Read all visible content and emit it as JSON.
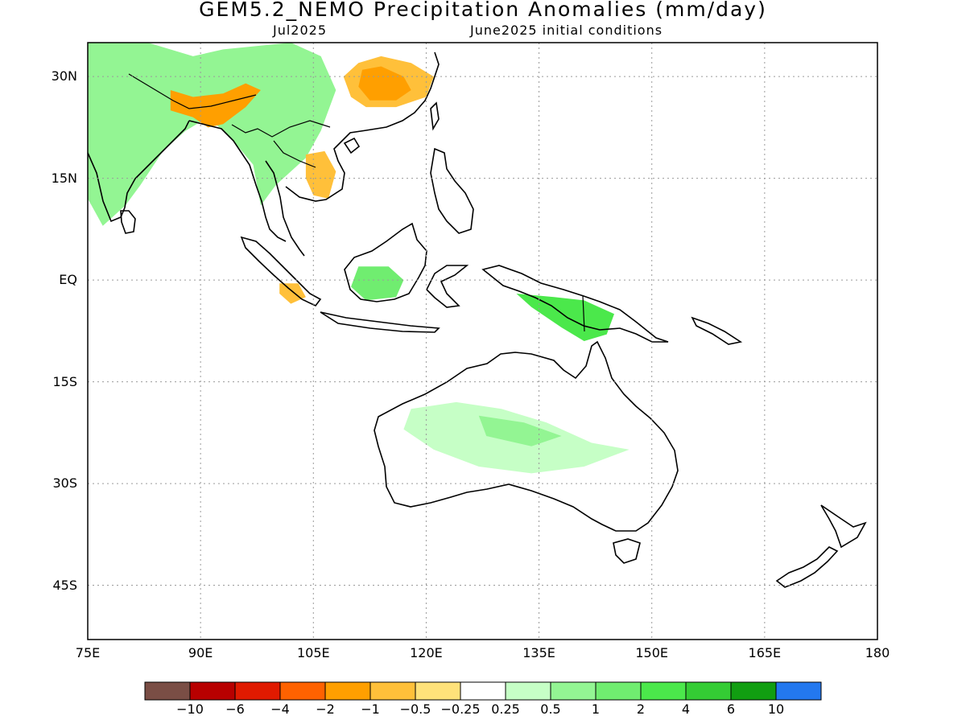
{
  "header": {
    "title": "GEM5.2_NEMO Precipitation Anomalies (mm/day)",
    "valid_month": "Jul2025",
    "initial_conditions": "June2025 initial conditions"
  },
  "map": {
    "lon_range": [
      75,
      180
    ],
    "lat_range": [
      -53,
      35
    ],
    "projection": "cylindrical equidistant",
    "grid": true,
    "lat_ticks": [
      {
        "value": 30,
        "label": "30N"
      },
      {
        "value": 15,
        "label": "15N"
      },
      {
        "value": 0,
        "label": "EQ"
      },
      {
        "value": -15,
        "label": "15S"
      },
      {
        "value": -30,
        "label": "30S"
      },
      {
        "value": -45,
        "label": "45S"
      }
    ],
    "lon_ticks": [
      {
        "value": 75,
        "label": "75E"
      },
      {
        "value": 90,
        "label": "90E"
      },
      {
        "value": 105,
        "label": "105E"
      },
      {
        "value": 120,
        "label": "120E"
      },
      {
        "value": 135,
        "label": "135E"
      },
      {
        "value": 150,
        "label": "150E"
      },
      {
        "value": 165,
        "label": "165E"
      },
      {
        "value": 180,
        "label": "180"
      }
    ]
  },
  "colorbar": {
    "colors": [
      "#7a4e45",
      "#b80000",
      "#e01a00",
      "#ff6200",
      "#ff9f00",
      "#ffc03a",
      "#ffe27a",
      "#ffffff",
      "#c6ffc6",
      "#93f593",
      "#70ed70",
      "#4be84b",
      "#34cc34",
      "#119e11",
      "#2378ef"
    ],
    "labels": [
      "−10",
      "−6",
      "−4",
      "−2",
      "−1",
      "−0.5",
      "−0.25",
      "0.25",
      "0.5",
      "1",
      "2",
      "4",
      "6",
      "10"
    ]
  },
  "features": [
    {
      "name": "china-dry",
      "color": "#ffc03a",
      "points": [
        [
          111,
          32
        ],
        [
          114,
          33
        ],
        [
          118,
          32
        ],
        [
          121,
          30
        ],
        [
          120,
          27
        ],
        [
          116,
          25.5
        ],
        [
          112,
          25.5
        ],
        [
          110,
          27
        ],
        [
          109,
          30
        ]
      ]
    },
    {
      "name": "china-dry-core",
      "color": "#ff9f00",
      "points": [
        [
          111.5,
          31
        ],
        [
          114,
          31.5
        ],
        [
          117,
          30
        ],
        [
          118,
          28
        ],
        [
          116,
          26.5
        ],
        [
          112.5,
          26.5
        ],
        [
          111,
          28.5
        ]
      ]
    },
    {
      "name": "south-asia-wet",
      "color": "#93f593",
      "points": [
        [
          75,
          35
        ],
        [
          83,
          35
        ],
        [
          89,
          33
        ],
        [
          93,
          34
        ],
        [
          102,
          35
        ],
        [
          106,
          33
        ],
        [
          108,
          28
        ],
        [
          106,
          22
        ],
        [
          104,
          18
        ],
        [
          100,
          14
        ],
        [
          98,
          11
        ],
        [
          97,
          17
        ],
        [
          94,
          21
        ],
        [
          91,
          24
        ],
        [
          88,
          22
        ],
        [
          85,
          19
        ],
        [
          82,
          14
        ],
        [
          80,
          11
        ],
        [
          77,
          8
        ],
        [
          75,
          12
        ]
      ]
    },
    {
      "name": "bay-of-bengal-dry",
      "color": "#ff9f00",
      "points": [
        [
          86,
          28
        ],
        [
          89,
          27
        ],
        [
          93,
          27.5
        ],
        [
          96,
          29
        ],
        [
          98,
          28
        ],
        [
          96,
          25.5
        ],
        [
          93,
          23
        ],
        [
          91,
          22.5
        ],
        [
          89,
          24
        ],
        [
          86,
          25
        ]
      ]
    },
    {
      "name": "mekong-dry",
      "color": "#ffc03a",
      "points": [
        [
          104,
          18.5
        ],
        [
          106.5,
          19
        ],
        [
          108,
          16
        ],
        [
          107,
          12
        ],
        [
          105,
          12.5
        ],
        [
          104,
          15
        ]
      ]
    },
    {
      "name": "borneo-wet",
      "color": "#70ed70",
      "points": [
        [
          111,
          2
        ],
        [
          115,
          2
        ],
        [
          117,
          0
        ],
        [
          116,
          -2.5
        ],
        [
          112,
          -3
        ],
        [
          110,
          -1
        ]
      ]
    },
    {
      "name": "sumatra-dry",
      "color": "#ffc03a",
      "points": [
        [
          100.5,
          -0.5
        ],
        [
          103,
          -0.5
        ],
        [
          104,
          -2.5
        ],
        [
          102,
          -3.5
        ],
        [
          100.5,
          -2
        ]
      ]
    },
    {
      "name": "new-guinea-wet",
      "color": "#4be84b",
      "points": [
        [
          132,
          -2
        ],
        [
          137,
          -2.5
        ],
        [
          141,
          -3
        ],
        [
          145,
          -5
        ],
        [
          144,
          -8
        ],
        [
          141,
          -9
        ],
        [
          138,
          -7
        ],
        [
          134,
          -4
        ]
      ]
    },
    {
      "name": "australia-wet",
      "color": "#c6ffc6",
      "points": [
        [
          118,
          -19
        ],
        [
          124,
          -18
        ],
        [
          130,
          -19
        ],
        [
          136,
          -21
        ],
        [
          142,
          -24
        ],
        [
          147,
          -25
        ],
        [
          141,
          -27.5
        ],
        [
          134,
          -28.5
        ],
        [
          127,
          -27.5
        ],
        [
          121,
          -25
        ],
        [
          117,
          -22
        ]
      ]
    },
    {
      "name": "australia-wet-core",
      "color": "#93f593",
      "points": [
        [
          127,
          -20
        ],
        [
          133,
          -21
        ],
        [
          138,
          -23
        ],
        [
          134,
          -24.5
        ],
        [
          128,
          -23
        ]
      ]
    }
  ]
}
